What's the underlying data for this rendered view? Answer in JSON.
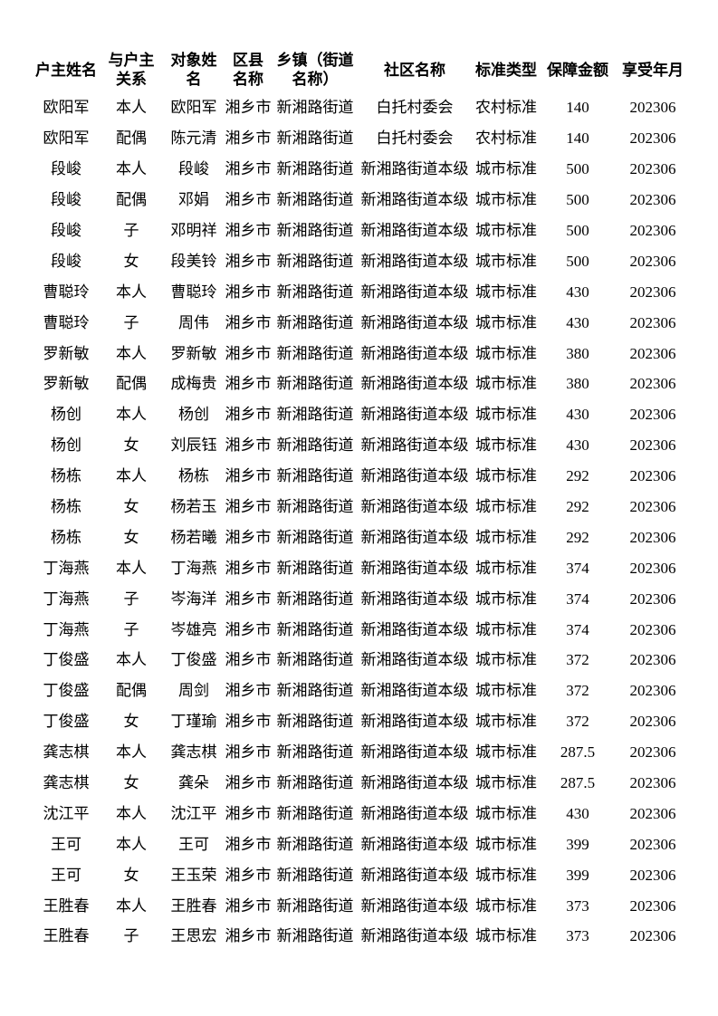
{
  "page": {
    "background": "#ffffff",
    "text_color": "#000000"
  },
  "table": {
    "columns": [
      {
        "key": "householder",
        "label": "户主姓名"
      },
      {
        "key": "relation",
        "label": "与户主\n关系"
      },
      {
        "key": "person",
        "label": "对象姓名"
      },
      {
        "key": "district",
        "label": "区县\n名称"
      },
      {
        "key": "township",
        "label": "乡镇（街道\n名称）"
      },
      {
        "key": "community",
        "label": "社区名称"
      },
      {
        "key": "standard_type",
        "label": "标准类型"
      },
      {
        "key": "amount",
        "label": "保障金额"
      },
      {
        "key": "year_month",
        "label": "享受年月"
      }
    ],
    "rows": [
      [
        "欧阳军",
        "本人",
        "欧阳军",
        "湘乡市",
        "新湘路街道",
        "白托村委会",
        "农村标准",
        "140",
        "202306"
      ],
      [
        "欧阳军",
        "配偶",
        "陈元清",
        "湘乡市",
        "新湘路街道",
        "白托村委会",
        "农村标准",
        "140",
        "202306"
      ],
      [
        "段峻",
        "本人",
        "段峻",
        "湘乡市",
        "新湘路街道",
        "新湘路街道本级",
        "城市标准",
        "500",
        "202306"
      ],
      [
        "段峻",
        "配偶",
        "邓娟",
        "湘乡市",
        "新湘路街道",
        "新湘路街道本级",
        "城市标准",
        "500",
        "202306"
      ],
      [
        "段峻",
        "子",
        "邓明祥",
        "湘乡市",
        "新湘路街道",
        "新湘路街道本级",
        "城市标准",
        "500",
        "202306"
      ],
      [
        "段峻",
        "女",
        "段美铃",
        "湘乡市",
        "新湘路街道",
        "新湘路街道本级",
        "城市标准",
        "500",
        "202306"
      ],
      [
        "曹聪玲",
        "本人",
        "曹聪玲",
        "湘乡市",
        "新湘路街道",
        "新湘路街道本级",
        "城市标准",
        "430",
        "202306"
      ],
      [
        "曹聪玲",
        "子",
        "周伟",
        "湘乡市",
        "新湘路街道",
        "新湘路街道本级",
        "城市标准",
        "430",
        "202306"
      ],
      [
        "罗新敏",
        "本人",
        "罗新敏",
        "湘乡市",
        "新湘路街道",
        "新湘路街道本级",
        "城市标准",
        "380",
        "202306"
      ],
      [
        "罗新敏",
        "配偶",
        "成梅贵",
        "湘乡市",
        "新湘路街道",
        "新湘路街道本级",
        "城市标准",
        "380",
        "202306"
      ],
      [
        "杨创",
        "本人",
        "杨创",
        "湘乡市",
        "新湘路街道",
        "新湘路街道本级",
        "城市标准",
        "430",
        "202306"
      ],
      [
        "杨创",
        "女",
        "刘辰钰",
        "湘乡市",
        "新湘路街道",
        "新湘路街道本级",
        "城市标准",
        "430",
        "202306"
      ],
      [
        "杨栋",
        "本人",
        "杨栋",
        "湘乡市",
        "新湘路街道",
        "新湘路街道本级",
        "城市标准",
        "292",
        "202306"
      ],
      [
        "杨栋",
        "女",
        "杨若玉",
        "湘乡市",
        "新湘路街道",
        "新湘路街道本级",
        "城市标准",
        "292",
        "202306"
      ],
      [
        "杨栋",
        "女",
        "杨若曦",
        "湘乡市",
        "新湘路街道",
        "新湘路街道本级",
        "城市标准",
        "292",
        "202306"
      ],
      [
        "丁海燕",
        "本人",
        "丁海燕",
        "湘乡市",
        "新湘路街道",
        "新湘路街道本级",
        "城市标准",
        "374",
        "202306"
      ],
      [
        "丁海燕",
        "子",
        "岑海洋",
        "湘乡市",
        "新湘路街道",
        "新湘路街道本级",
        "城市标准",
        "374",
        "202306"
      ],
      [
        "丁海燕",
        "子",
        "岑雄亮",
        "湘乡市",
        "新湘路街道",
        "新湘路街道本级",
        "城市标准",
        "374",
        "202306"
      ],
      [
        "丁俊盛",
        "本人",
        "丁俊盛",
        "湘乡市",
        "新湘路街道",
        "新湘路街道本级",
        "城市标准",
        "372",
        "202306"
      ],
      [
        "丁俊盛",
        "配偶",
        "周剑",
        "湘乡市",
        "新湘路街道",
        "新湘路街道本级",
        "城市标准",
        "372",
        "202306"
      ],
      [
        "丁俊盛",
        "女",
        "丁瑾瑜",
        "湘乡市",
        "新湘路街道",
        "新湘路街道本级",
        "城市标准",
        "372",
        "202306"
      ],
      [
        "龚志棋",
        "本人",
        "龚志棋",
        "湘乡市",
        "新湘路街道",
        "新湘路街道本级",
        "城市标准",
        "287.5",
        "202306"
      ],
      [
        "龚志棋",
        "女",
        "龚朵",
        "湘乡市",
        "新湘路街道",
        "新湘路街道本级",
        "城市标准",
        "287.5",
        "202306"
      ],
      [
        "沈江平",
        "本人",
        "沈江平",
        "湘乡市",
        "新湘路街道",
        "新湘路街道本级",
        "城市标准",
        "430",
        "202306"
      ],
      [
        "王可",
        "本人",
        "王可",
        "湘乡市",
        "新湘路街道",
        "新湘路街道本级",
        "城市标准",
        "399",
        "202306"
      ],
      [
        "王可",
        "女",
        "王玉荣",
        "湘乡市",
        "新湘路街道",
        "新湘路街道本级",
        "城市标准",
        "399",
        "202306"
      ],
      [
        "王胜春",
        "本人",
        "王胜春",
        "湘乡市",
        "新湘路街道",
        "新湘路街道本级",
        "城市标准",
        "373",
        "202306"
      ],
      [
        "王胜春",
        "子",
        "王思宏",
        "湘乡市",
        "新湘路街道",
        "新湘路街道本级",
        "城市标准",
        "373",
        "202306"
      ]
    ]
  }
}
